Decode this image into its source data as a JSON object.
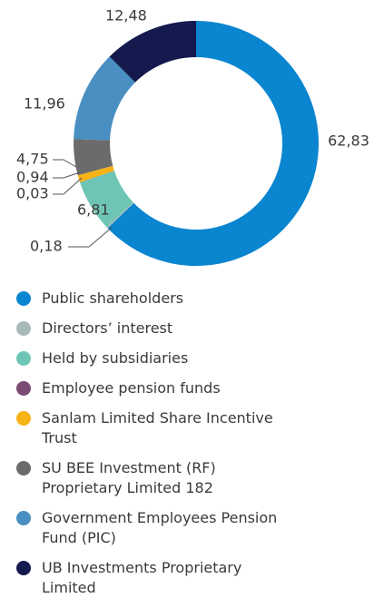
{
  "chart_data": {
    "type": "donut",
    "categories": [
      "Public shareholders",
      "Directors’ interest",
      "Held by subsidiaries",
      "Employee pension funds",
      "Sanlam Limited Share Incentive Trust",
      "SU BEE Investment (RF) Proprietary Limited 182",
      "Government Employees Pension Fund (PIC)",
      "UB Investments Proprietary Limited"
    ],
    "values": [
      62.83,
      0.18,
      6.81,
      0.03,
      0.94,
      4.75,
      11.96,
      12.48
    ],
    "value_labels": [
      "62,83",
      "0,18",
      "6,81",
      "0,03",
      "0,94",
      "4,75",
      "11,96",
      "12,48"
    ],
    "colors": [
      "#0a85d0",
      "#a7b9b9",
      "#6fc5b5",
      "#7a4c73",
      "#f6b316",
      "#6b6b6b",
      "#4a8fc1",
      "#141a4e"
    ]
  }
}
